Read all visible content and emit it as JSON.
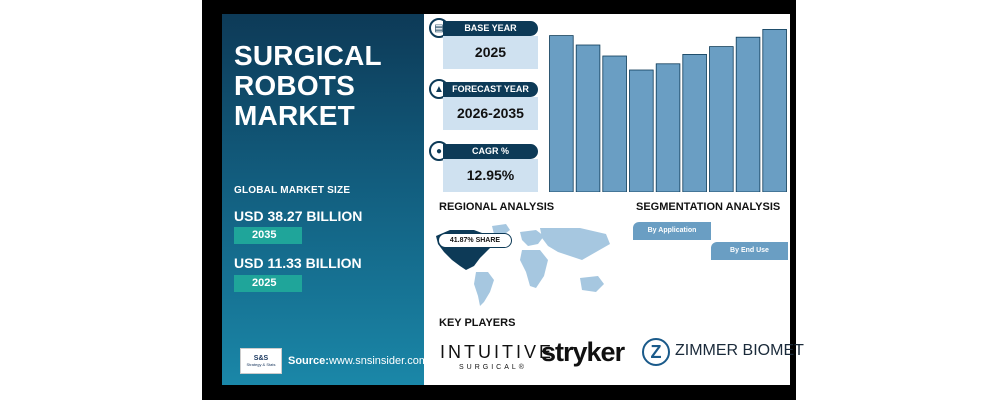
{
  "left_panel": {
    "title_lines": [
      "SURGICAL",
      "ROBOTS",
      "MARKET"
    ],
    "global_market_size_label": "GLOBAL MARKET SIZE",
    "value_2035": "USD 38.27 BILLION",
    "year_2035": "2035",
    "value_2025": "USD 11.33 BILLION",
    "year_2025": "2025",
    "source_label": "Source:",
    "source_url": "www.snsinsider.com",
    "logo_line1": "S&S",
    "logo_line2": "Strategy & Stats"
  },
  "cards": {
    "base_year": {
      "label": "BASE YEAR",
      "value": "2025",
      "icon": "document-icon"
    },
    "forecast_year": {
      "label": "FORECAST YEAR",
      "value": "2026-2035",
      "icon": "chart-icon"
    },
    "cagr": {
      "label": "CAGR %",
      "value": "12.95%",
      "icon": "coins-icon"
    }
  },
  "chart_data": {
    "type": "bar",
    "values": [
      100,
      94,
      87,
      78,
      82,
      88,
      93,
      99,
      104
    ],
    "ylim": [
      0,
      110
    ],
    "bar_color": "#6a9ec3",
    "title": "",
    "xlabel": "",
    "ylabel": "",
    "grid": false
  },
  "regional": {
    "title": "REGIONAL ANALYSIS",
    "share_badge": "41.87% SHARE"
  },
  "segmentation": {
    "title": "SEGMENTATION ANALYSIS",
    "segments": [
      "By Application",
      "By End Use"
    ]
  },
  "key_players": {
    "title": "KEY PLAYERS",
    "player1_main": "INTUITIVE",
    "player1_sub": "SURGICAL®",
    "player2": "stryker",
    "player3_mark": "Z",
    "player3": "ZIMMER BIOMET"
  },
  "colors": {
    "panel_dark": "#0d3a57",
    "panel_light": "#1a87a8",
    "teal_bar": "#1fa59a",
    "card_bg": "#cfe1f0",
    "bar": "#6a9ec3"
  }
}
